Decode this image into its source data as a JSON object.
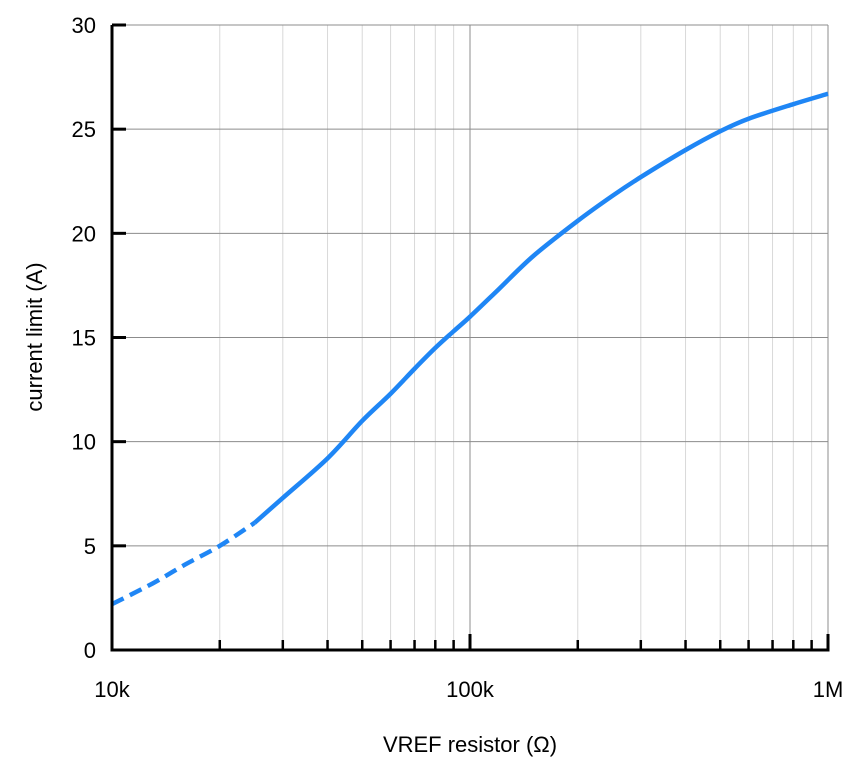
{
  "chart_data": {
    "type": "line",
    "xlabel": "VREF resistor (Ω)",
    "ylabel": "current limit (A)",
    "x_scale": "log",
    "xlim": [
      10000,
      1000000
    ],
    "ylim": [
      0,
      30
    ],
    "x_ticks": [
      {
        "value": 10000,
        "label": "10k"
      },
      {
        "value": 100000,
        "label": "100k"
      },
      {
        "value": 1000000,
        "label": "1M"
      }
    ],
    "y_ticks": [
      {
        "value": 0,
        "label": "0"
      },
      {
        "value": 5,
        "label": "5"
      },
      {
        "value": 10,
        "label": "10"
      },
      {
        "value": 15,
        "label": "15"
      },
      {
        "value": 20,
        "label": "20"
      },
      {
        "value": 25,
        "label": "25"
      },
      {
        "value": 30,
        "label": "30"
      }
    ],
    "grid": true,
    "line_color": "#1f86f5",
    "series": [
      {
        "style": "dashed",
        "points": [
          {
            "x": 10000,
            "y": 2.2
          },
          {
            "x": 13000,
            "y": 3.2
          },
          {
            "x": 16000,
            "y": 4.1
          },
          {
            "x": 20000,
            "y": 5.0
          },
          {
            "x": 25000,
            "y": 6.1
          }
        ]
      },
      {
        "style": "solid",
        "points": [
          {
            "x": 25000,
            "y": 6.1
          },
          {
            "x": 30000,
            "y": 7.3
          },
          {
            "x": 40000,
            "y": 9.2
          },
          {
            "x": 50000,
            "y": 11.0
          },
          {
            "x": 60000,
            "y": 12.3
          },
          {
            "x": 70000,
            "y": 13.5
          },
          {
            "x": 80000,
            "y": 14.5
          },
          {
            "x": 90000,
            "y": 15.3
          },
          {
            "x": 100000,
            "y": 16.0
          },
          {
            "x": 120000,
            "y": 17.3
          },
          {
            "x": 150000,
            "y": 18.9
          },
          {
            "x": 200000,
            "y": 20.6
          },
          {
            "x": 250000,
            "y": 21.8
          },
          {
            "x": 300000,
            "y": 22.7
          },
          {
            "x": 400000,
            "y": 24.0
          },
          {
            "x": 500000,
            "y": 24.9
          },
          {
            "x": 600000,
            "y": 25.5
          },
          {
            "x": 800000,
            "y": 26.2
          },
          {
            "x": 1000000,
            "y": 26.7
          }
        ]
      }
    ]
  }
}
